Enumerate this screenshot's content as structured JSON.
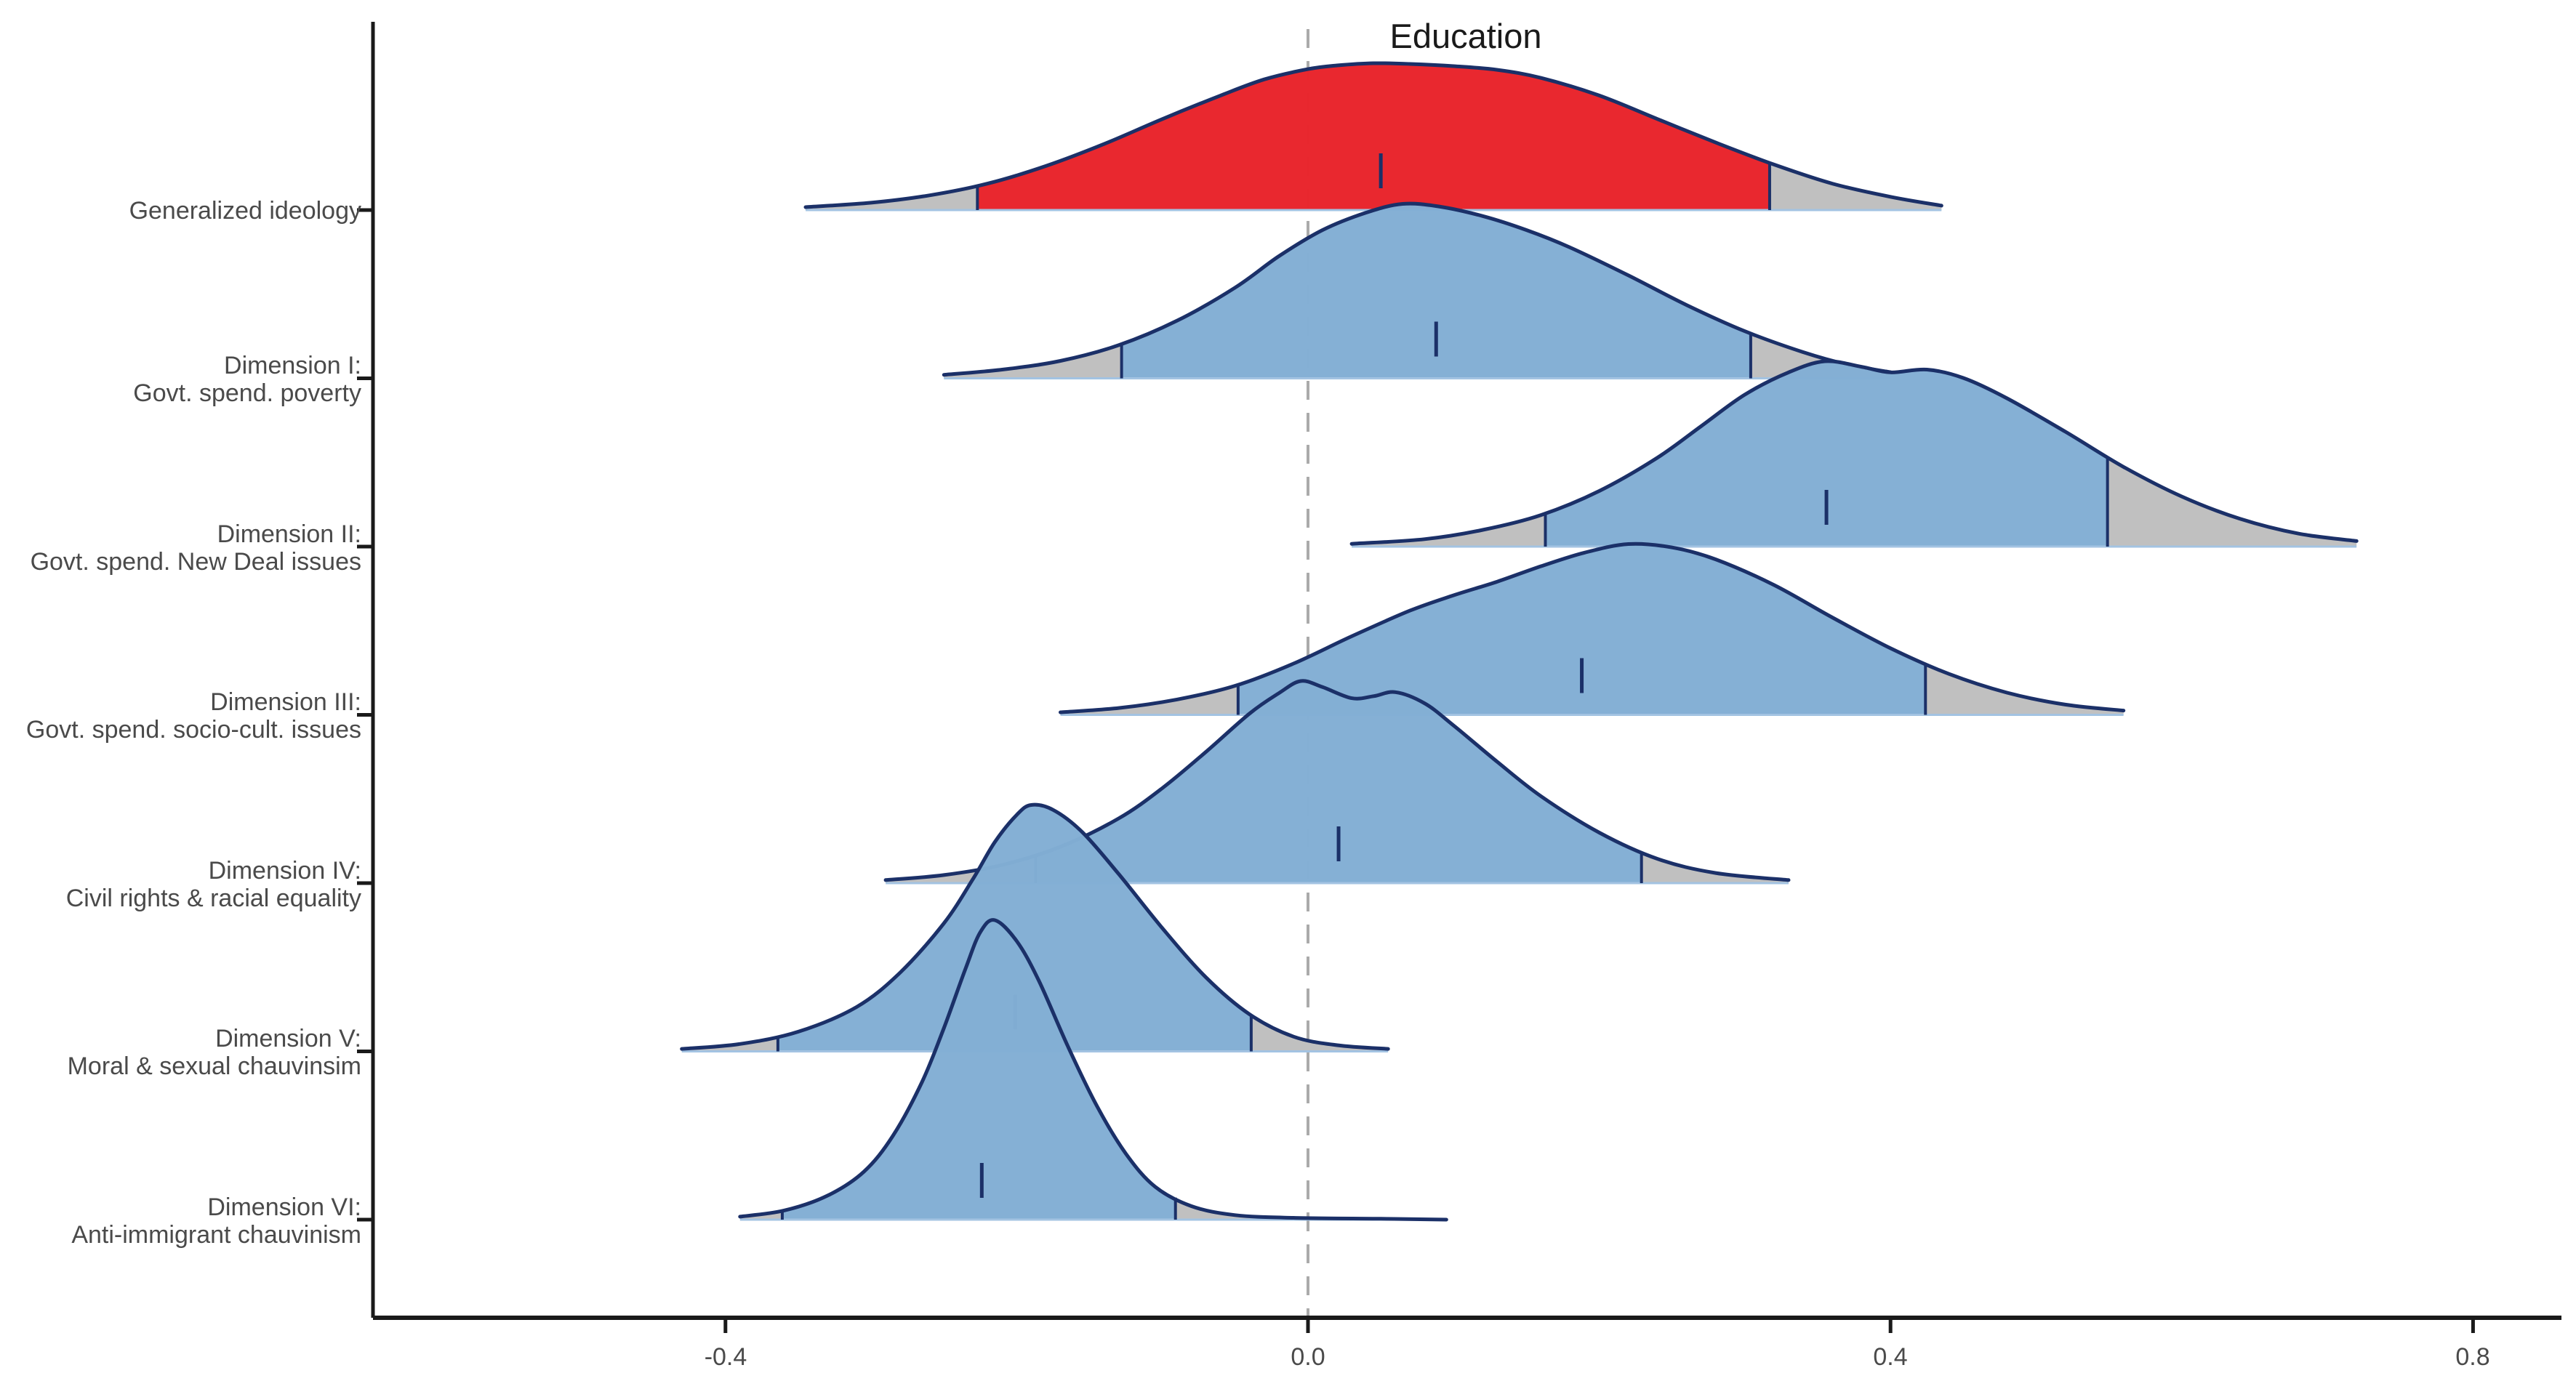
{
  "chart_data": {
    "type": "area",
    "subtype": "ridgeline-density",
    "title": "Education",
    "xlabel": "",
    "ylabel": "",
    "xlim": [
      -0.642,
      0.861
    ],
    "x_ticks": [
      {
        "label": "-0.4",
        "value": -0.4
      },
      {
        "label": "0.0",
        "value": 0.0
      },
      {
        "label": "0.4",
        "value": 0.4
      },
      {
        "label": "0.8",
        "value": 0.8
      }
    ],
    "zero_reference_line": {
      "value": 0.0,
      "style": "dashed"
    },
    "legend": "none",
    "rows": [
      {
        "label1": "Generalized ideology",
        "label2": "",
        "fill": "#EC1C24",
        "mean": 0.05,
        "ci": [
          -0.227,
          0.317
        ],
        "amplitude": 202,
        "curve": [
          [
            -0.345,
            0.02
          ],
          [
            -0.3,
            0.05
          ],
          [
            -0.26,
            0.1
          ],
          [
            -0.22,
            0.18
          ],
          [
            -0.18,
            0.3
          ],
          [
            -0.14,
            0.45
          ],
          [
            -0.1,
            0.62
          ],
          [
            -0.06,
            0.78
          ],
          [
            -0.03,
            0.89
          ],
          [
            0.0,
            0.96
          ],
          [
            0.02,
            0.985
          ],
          [
            0.045,
            1.0
          ],
          [
            0.07,
            0.995
          ],
          [
            0.1,
            0.98
          ],
          [
            0.13,
            0.955
          ],
          [
            0.16,
            0.9
          ],
          [
            0.2,
            0.78
          ],
          [
            0.24,
            0.62
          ],
          [
            0.28,
            0.46
          ],
          [
            0.32,
            0.31
          ],
          [
            0.36,
            0.18
          ],
          [
            0.4,
            0.09
          ],
          [
            0.435,
            0.03
          ]
        ]
      },
      {
        "label1": "Dimension I:",
        "label2": "Govt. spend. poverty",
        "fill": "#7BADD8",
        "mean": 0.088,
        "ci": [
          -0.128,
          0.304
        ],
        "amplitude": 240,
        "curve": [
          [
            -0.25,
            0.02
          ],
          [
            -0.21,
            0.05
          ],
          [
            -0.17,
            0.1
          ],
          [
            -0.13,
            0.19
          ],
          [
            -0.09,
            0.33
          ],
          [
            -0.05,
            0.52
          ],
          [
            -0.02,
            0.7
          ],
          [
            0.01,
            0.85
          ],
          [
            0.04,
            0.95
          ],
          [
            0.065,
            1.0
          ],
          [
            0.09,
            0.985
          ],
          [
            0.12,
            0.93
          ],
          [
            0.15,
            0.85
          ],
          [
            0.18,
            0.75
          ],
          [
            0.22,
            0.59
          ],
          [
            0.26,
            0.42
          ],
          [
            0.3,
            0.27
          ],
          [
            0.34,
            0.15
          ],
          [
            0.37,
            0.08
          ],
          [
            0.4,
            0.035
          ]
        ]
      },
      {
        "label1": "Dimension II:",
        "label2": "Govt. spend. New Deal issues",
        "fill": "#7BADD8",
        "mean": 0.356,
        "ci": [
          0.163,
          0.549
        ],
        "amplitude": 255,
        "curve": [
          [
            0.03,
            0.015
          ],
          [
            0.08,
            0.04
          ],
          [
            0.12,
            0.09
          ],
          [
            0.16,
            0.17
          ],
          [
            0.2,
            0.3
          ],
          [
            0.24,
            0.48
          ],
          [
            0.27,
            0.65
          ],
          [
            0.3,
            0.82
          ],
          [
            0.33,
            0.94
          ],
          [
            0.355,
            1.0
          ],
          [
            0.38,
            0.97
          ],
          [
            0.4,
            0.94
          ],
          [
            0.425,
            0.955
          ],
          [
            0.45,
            0.91
          ],
          [
            0.48,
            0.8
          ],
          [
            0.52,
            0.62
          ],
          [
            0.56,
            0.43
          ],
          [
            0.6,
            0.27
          ],
          [
            0.64,
            0.15
          ],
          [
            0.68,
            0.07
          ],
          [
            0.72,
            0.03
          ]
        ]
      },
      {
        "label1": "Dimension III:",
        "label2": "Govt. spend. socio-cult. issues",
        "fill": "#7BADD8",
        "mean": 0.188,
        "ci": [
          -0.048,
          0.424
        ],
        "amplitude": 235,
        "curve": [
          [
            -0.17,
            0.015
          ],
          [
            -0.13,
            0.04
          ],
          [
            -0.09,
            0.09
          ],
          [
            -0.05,
            0.17
          ],
          [
            -0.01,
            0.3
          ],
          [
            0.03,
            0.46
          ],
          [
            0.07,
            0.61
          ],
          [
            0.1,
            0.7
          ],
          [
            0.13,
            0.78
          ],
          [
            0.16,
            0.87
          ],
          [
            0.19,
            0.95
          ],
          [
            0.22,
            1.0
          ],
          [
            0.25,
            0.98
          ],
          [
            0.28,
            0.91
          ],
          [
            0.32,
            0.76
          ],
          [
            0.36,
            0.57
          ],
          [
            0.4,
            0.39
          ],
          [
            0.44,
            0.24
          ],
          [
            0.48,
            0.13
          ],
          [
            0.52,
            0.06
          ],
          [
            0.56,
            0.025
          ]
        ]
      },
      {
        "label1": "Dimension IV:",
        "label2": "Civil rights & racial equality",
        "fill": "#7BADD8",
        "mean": 0.021,
        "ci": [
          -0.187,
          0.229
        ],
        "amplitude": 278,
        "curve": [
          [
            -0.29,
            0.015
          ],
          [
            -0.25,
            0.04
          ],
          [
            -0.21,
            0.09
          ],
          [
            -0.17,
            0.18
          ],
          [
            -0.13,
            0.32
          ],
          [
            -0.1,
            0.47
          ],
          [
            -0.07,
            0.65
          ],
          [
            -0.04,
            0.84
          ],
          [
            -0.02,
            0.94
          ],
          [
            -0.005,
            1.0
          ],
          [
            0.01,
            0.97
          ],
          [
            0.03,
            0.915
          ],
          [
            0.045,
            0.925
          ],
          [
            0.06,
            0.945
          ],
          [
            0.08,
            0.89
          ],
          [
            0.1,
            0.78
          ],
          [
            0.13,
            0.6
          ],
          [
            0.16,
            0.43
          ],
          [
            0.2,
            0.25
          ],
          [
            0.24,
            0.12
          ],
          [
            0.28,
            0.05
          ],
          [
            0.33,
            0.015
          ]
        ]
      },
      {
        "label1": "Dimension V:",
        "label2": "Moral & sexual chauvinsim",
        "fill": "#7BADD8",
        "mean": -0.201,
        "ci": [
          -0.364,
          -0.039
        ],
        "amplitude": 339,
        "curve": [
          [
            -0.43,
            0.01
          ],
          [
            -0.39,
            0.03
          ],
          [
            -0.35,
            0.08
          ],
          [
            -0.31,
            0.18
          ],
          [
            -0.28,
            0.32
          ],
          [
            -0.25,
            0.52
          ],
          [
            -0.23,
            0.7
          ],
          [
            -0.215,
            0.85
          ],
          [
            -0.2,
            0.96
          ],
          [
            -0.19,
            1.0
          ],
          [
            -0.175,
            0.98
          ],
          [
            -0.155,
            0.89
          ],
          [
            -0.13,
            0.72
          ],
          [
            -0.1,
            0.5
          ],
          [
            -0.07,
            0.3
          ],
          [
            -0.04,
            0.15
          ],
          [
            -0.01,
            0.06
          ],
          [
            0.02,
            0.025
          ],
          [
            0.055,
            0.01
          ]
        ]
      },
      {
        "label1": "Dimension VI:",
        "label2": "Anti-immigrant chauvinism",
        "fill": "#7BADD8",
        "mean": -0.224,
        "ci": [
          -0.361,
          -0.091
        ],
        "amplitude": 412,
        "curve": [
          [
            -0.39,
            0.01
          ],
          [
            -0.36,
            0.03
          ],
          [
            -0.33,
            0.08
          ],
          [
            -0.305,
            0.16
          ],
          [
            -0.285,
            0.28
          ],
          [
            -0.265,
            0.46
          ],
          [
            -0.25,
            0.64
          ],
          [
            -0.235,
            0.84
          ],
          [
            -0.225,
            0.96
          ],
          [
            -0.215,
            1.0
          ],
          [
            -0.2,
            0.93
          ],
          [
            -0.185,
            0.8
          ],
          [
            -0.165,
            0.58
          ],
          [
            -0.145,
            0.38
          ],
          [
            -0.125,
            0.22
          ],
          [
            -0.105,
            0.11
          ],
          [
            -0.08,
            0.045
          ],
          [
            -0.05,
            0.015
          ],
          [
            -0.01,
            0.006
          ],
          [
            0.05,
            0.003
          ],
          [
            0.095,
            0.0
          ]
        ]
      }
    ],
    "colors": {
      "ridge_blue": "#7BADD8",
      "ridge_red": "#EC1C24",
      "tail_gray": "#B5B5B5",
      "outline_navy": "#1B3068",
      "baseline_blue": "#A3C3E2",
      "dashed_gray": "#ABABAB",
      "axis_black": "#1a1a1a",
      "label_gray": "#4a4a4a"
    }
  }
}
